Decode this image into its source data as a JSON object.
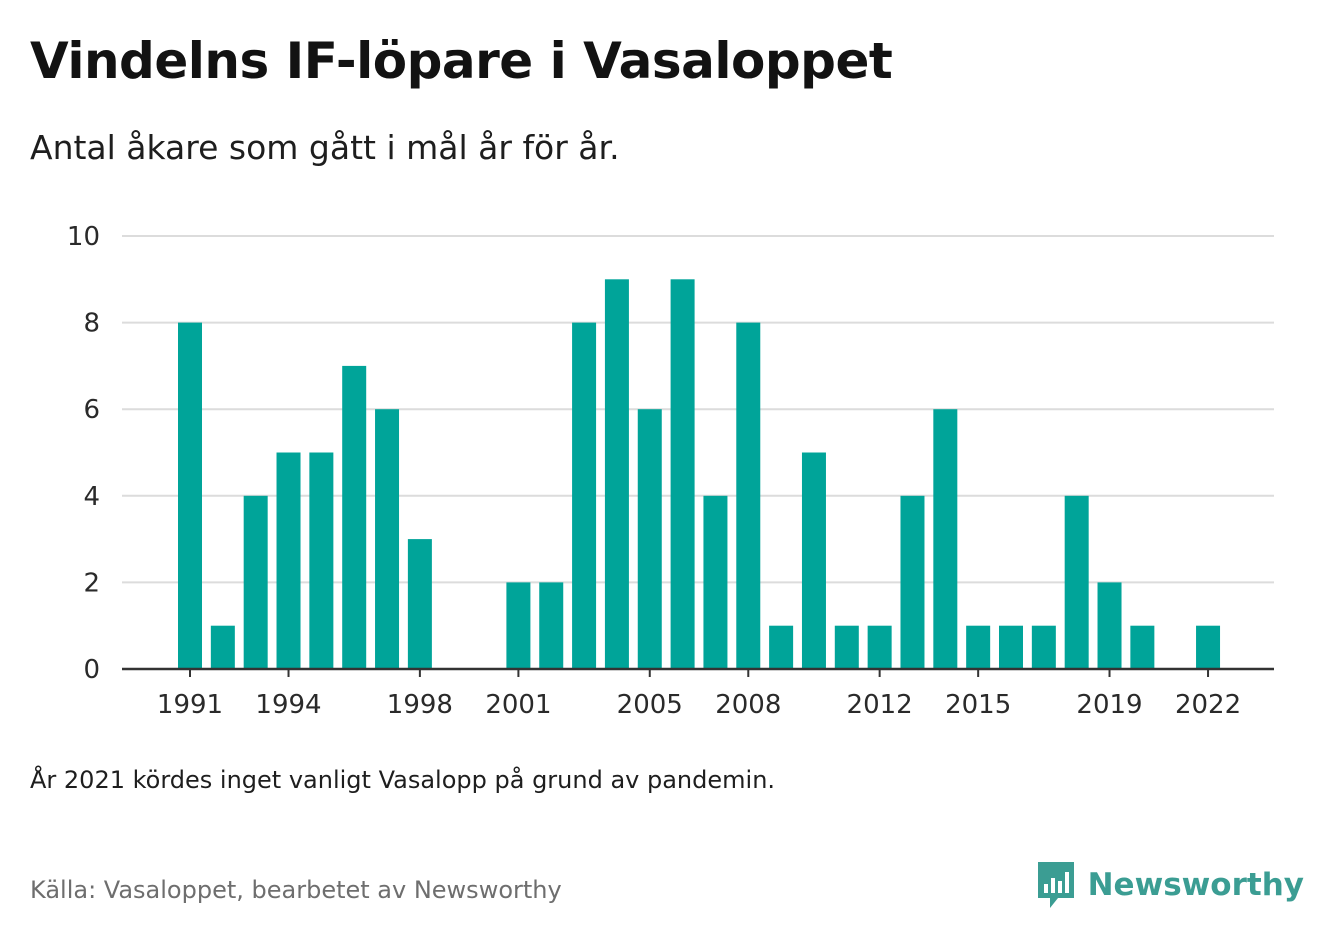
{
  "title": "Vindelns IF-löpare i Vasaloppet",
  "subtitle": "Antal åkare som gått i mål år för år.",
  "note": "År 2021 kördes inget vanligt Vasalopp på grund av pandemin.",
  "source": "Källa: Vasaloppet, bearbetet av Newsworthy",
  "brand": "Newsworthy",
  "colors": {
    "bar": "#00a499",
    "grid": "#dcdcdc",
    "axis": "#333333",
    "brand": "#3b9d93"
  },
  "chart_data": {
    "type": "bar",
    "categories": [
      1991,
      1992,
      1993,
      1994,
      1995,
      1996,
      1997,
      1998,
      1999,
      2000,
      2001,
      2002,
      2003,
      2004,
      2005,
      2006,
      2007,
      2008,
      2009,
      2010,
      2011,
      2012,
      2013,
      2014,
      2015,
      2016,
      2017,
      2018,
      2019,
      2020,
      2021,
      2022
    ],
    "values": [
      8,
      1,
      4,
      5,
      5,
      7,
      6,
      3,
      0,
      0,
      2,
      2,
      8,
      9,
      6,
      9,
      4,
      8,
      1,
      5,
      1,
      1,
      4,
      6,
      1,
      1,
      1,
      4,
      2,
      1,
      0,
      1
    ],
    "x_tick_labels": [
      1991,
      1994,
      1998,
      2001,
      2005,
      2008,
      2012,
      2015,
      2019,
      2022
    ],
    "y_ticks": [
      0,
      2,
      4,
      6,
      8,
      10
    ],
    "ylim": [
      0,
      10
    ],
    "grid": true,
    "legend": "none"
  }
}
